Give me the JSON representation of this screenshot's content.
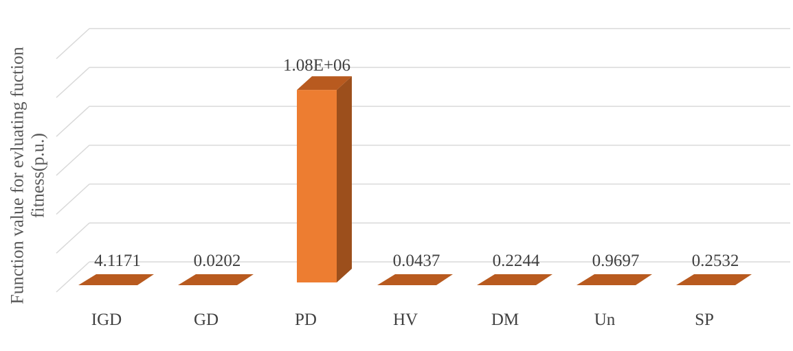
{
  "chart_data": {
    "type": "bar",
    "style": "3d-column",
    "title": "",
    "xlabel": "",
    "ylabel_lines": [
      "Function value for evluating fuction",
      "fitness(p.u.)"
    ],
    "categories": [
      "IGD",
      "GD",
      "PD",
      "HV",
      "DM",
      "Un",
      "SP"
    ],
    "values": [
      4.1171,
      0.0202,
      1080000,
      0.0437,
      0.2244,
      0.9697,
      0.2532
    ],
    "value_labels": [
      "4.1171",
      "0.0202",
      "1.08E+06",
      "0.0437",
      "0.2244",
      "0.9697",
      "0.2532"
    ],
    "ylim": [
      0,
      1200000
    ],
    "grid": true,
    "legend": "none",
    "colors": {
      "front": "#ED7D31",
      "side": "#9C4F1C",
      "top": "#B85A1F",
      "grid": "#D9D9D9",
      "text": "#404040"
    }
  }
}
